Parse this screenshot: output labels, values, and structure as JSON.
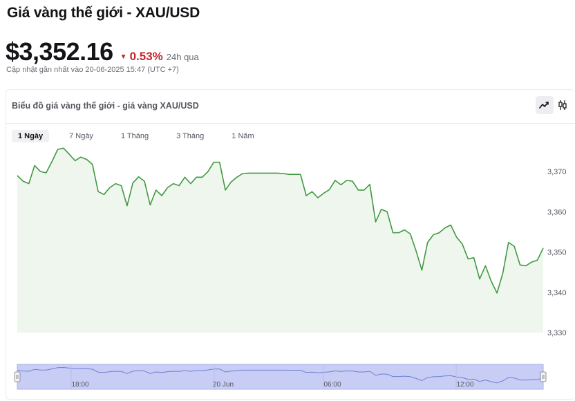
{
  "header": {
    "title": "Giá vàng thế giới - XAU/USD",
    "price": "$3,352.16",
    "change_pct": "0.53%",
    "change_period": "24h qua",
    "updated": "Cập nhật gần nhất vào 20-06-2025 15:47 (UTC +7)"
  },
  "colors": {
    "line": "#3f9a3f",
    "area": "#eef6ee",
    "negative": "#c8232b",
    "navigator_fill": "#c7cdf4",
    "navigator_line": "#6f7fd0"
  },
  "card": {
    "title": "Biểu đồ giá vàng thế giới - giá vàng XAU/USD",
    "icons": [
      "line-chart-icon",
      "candlestick-chart-icon"
    ]
  },
  "tabs": [
    {
      "label": "1 Ngày",
      "active": true
    },
    {
      "label": "7 Ngày",
      "active": false
    },
    {
      "label": "1 Tháng",
      "active": false
    },
    {
      "label": "3 Tháng",
      "active": false
    },
    {
      "label": "1 Năm",
      "active": false
    }
  ],
  "chart_data": {
    "type": "area",
    "title": "",
    "xlabel": "",
    "ylabel": "",
    "ylim": [
      3330,
      3375
    ],
    "y_ticks": [
      "3,330",
      "3,340",
      "3,350",
      "3,360",
      "3,370"
    ],
    "y_tick_values": [
      3330,
      3340,
      3350,
      3360,
      3370
    ],
    "navigator_ticks": [
      "18:00",
      "20 Jun",
      "06:00",
      "12:00"
    ],
    "values": [
      3369,
      3367.6,
      3367,
      3371.5,
      3370,
      3369.7,
      3372.5,
      3375.5,
      3375.8,
      3374.3,
      3372.7,
      3373.6,
      3373,
      3371.8,
      3365,
      3364.3,
      3366,
      3367,
      3366.5,
      3361.5,
      3367.2,
      3368.7,
      3367.6,
      3361.7,
      3365.4,
      3364,
      3366,
      3367,
      3366.5,
      3368.6,
      3367,
      3368.6,
      3368.6,
      3370,
      3372.3,
      3372.3,
      3365.4,
      3367.4,
      3368.6,
      3369.5,
      3369.6,
      3369.6,
      3369.6,
      3369.6,
      3369.6,
      3369.6,
      3369.5,
      3369.3,
      3369.3,
      3369.3,
      3364,
      3365,
      3363.5,
      3364.6,
      3365.5,
      3367.8,
      3366.7,
      3367.8,
      3367.6,
      3365.4,
      3365.4,
      3366.8,
      3357.5,
      3360.6,
      3360,
      3354.8,
      3354.8,
      3355.5,
      3354.5,
      3350.3,
      3345.5,
      3352.4,
      3354.3,
      3354.8,
      3356,
      3356.7,
      3353.7,
      3352,
      3348.3,
      3348.6,
      3343.3,
      3346.6,
      3342.8,
      3339.8,
      3344.7,
      3352.4,
      3351.4,
      3346.8,
      3346.6,
      3347.5,
      3348,
      3351
    ]
  }
}
